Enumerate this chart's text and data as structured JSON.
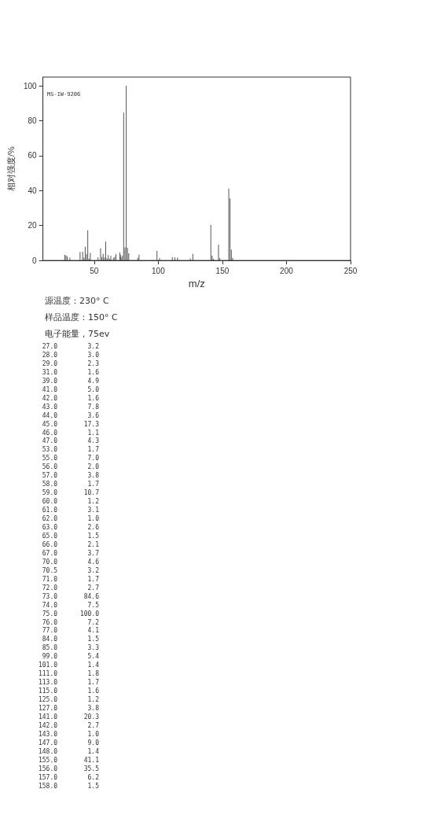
{
  "chart_data": [
    {
      "type": "bar",
      "xlabel": "m/z",
      "ylabel": "相对强度/%",
      "annotations": [
        "MS-IW-9206",
        "源温度：230° C",
        "样品温度：150° C",
        "电子能量，75ev"
      ],
      "x": [
        27.0,
        28.0,
        29.0,
        31.0,
        39.0,
        41.0,
        42.0,
        43.0,
        44.0,
        45.0,
        46.0,
        47.0,
        53.0,
        55.0,
        56.0,
        57.0,
        58.0,
        59.0,
        60.0,
        61.0,
        62.0,
        63.0,
        65.0,
        66.0,
        67.0,
        70.0,
        70.5,
        71.0,
        72.0,
        73.0,
        74.0,
        75.0,
        76.0,
        77.0,
        84.0,
        85.0,
        99.0,
        101.0,
        111.0,
        113.0,
        115.0,
        125.0,
        127.0,
        141.0,
        142.0,
        143.0,
        147.0,
        148.0,
        155.0,
        156.0,
        157.0,
        158.0
      ],
      "values": [
        3.2,
        3.0,
        2.3,
        1.6,
        4.9,
        5.0,
        1.6,
        7.8,
        3.6,
        17.3,
        1.1,
        4.3,
        1.7,
        7.0,
        2.0,
        3.8,
        1.7,
        10.7,
        1.2,
        3.1,
        1.0,
        2.6,
        1.5,
        2.1,
        3.7,
        4.6,
        3.2,
        1.7,
        2.7,
        84.6,
        7.5,
        100.0,
        7.2,
        4.1,
        1.5,
        3.3,
        5.4,
        1.4,
        1.8,
        1.7,
        1.6,
        1.2,
        3.8,
        20.3,
        2.7,
        1.0,
        9.0,
        1.4,
        41.1,
        35.5,
        6.2,
        1.5
      ],
      "color": "#555555",
      "xlim": [
        10,
        250
      ],
      "xticks": [
        50,
        100,
        150,
        200,
        250
      ],
      "ylim": [
        0,
        105
      ],
      "yticks": [
        0,
        20,
        40,
        60,
        80,
        100
      ],
      "grid": false
    },
    {
      "type": "other",
      "annotations": [
        "27.0        3.2",
        "28.0        3.0",
        "29.0        2.3",
        "31.0        1.6",
        "39.0        4.9",
        "41.0        5.0",
        "42.0        1.6",
        "43.0        7.8",
        "44.0        3.6",
        "45.0       17.3",
        "46.0        1.1",
        "47.0        4.3",
        "53.0        1.7",
        "55.0        7.0",
        "56.0        2.0",
        "57.0        3.8",
        "58.0        1.7",
        "59.0       10.7",
        "60.0        1.2",
        "61.0        3.1",
        "62.0        1.0",
        "63.0        2.6",
        "65.0        1.5",
        "66.0        2.1",
        "67.0        3.7",
        "70.0        4.6",
        "70.5        3.2",
        "71.0        1.7",
        "72.0        2.7",
        "73.0       84.6",
        "74.0        7.5",
        "75.0      100.0",
        "76.0        7.2",
        "77.0        4.1",
        "84.0        1.5",
        "85.0        3.3",
        "99.0        5.4",
        "101.0        1.4",
        "111.0        1.8",
        "113.0        1.7",
        "115.0        1.6",
        "125.0        1.2",
        "127.0        3.8",
        "141.0       20.3",
        "142.0        2.7",
        "143.0        1.0",
        "147.0        9.0",
        "148.0        1.4",
        "155.0       41.1",
        "156.0       35.5",
        "157.0        6.2",
        "158.0        1.5"
      ]
    }
  ]
}
